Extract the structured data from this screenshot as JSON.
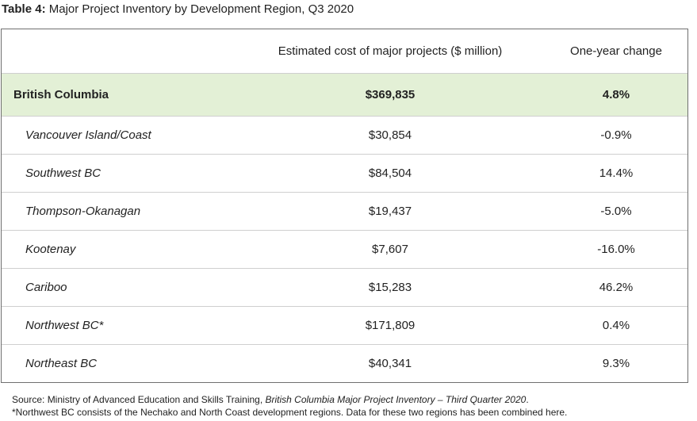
{
  "caption": {
    "label": "Table 4:",
    "title": "Major Project Inventory by Development Region, Q3 2020"
  },
  "table": {
    "headers": [
      "",
      "Estimated cost of major projects ($ million)",
      "One-year change"
    ],
    "total": {
      "region": "British Columbia",
      "cost": "$369,835",
      "change": "4.8%"
    },
    "rows": [
      {
        "region": "Vancouver Island/Coast",
        "cost": "$30,854",
        "change": "-0.9%"
      },
      {
        "region": "Southwest BC",
        "cost": "$84,504",
        "change": "14.4%"
      },
      {
        "region": "Thompson-Okanagan",
        "cost": "$19,437",
        "change": "-5.0%"
      },
      {
        "region": "Kootenay",
        "cost": "$7,607",
        "change": "-16.0%"
      },
      {
        "region": "Cariboo",
        "cost": "$15,283",
        "change": "46.2%"
      },
      {
        "region": "Northwest BC*",
        "cost": "$171,809",
        "change": "0.4%"
      },
      {
        "region": "Northeast BC",
        "cost": "$40,341",
        "change": "9.3%"
      }
    ]
  },
  "notes": {
    "source_prefix": "Source: Ministry of Advanced Education and Skills Training, ",
    "source_title": "British Columbia Major Project Inventory – Third Quarter 2020",
    "source_suffix": ".",
    "footnote": "*Northwest BC consists of the Nechako and North Coast development regions. Data for these two regions has been combined here."
  }
}
